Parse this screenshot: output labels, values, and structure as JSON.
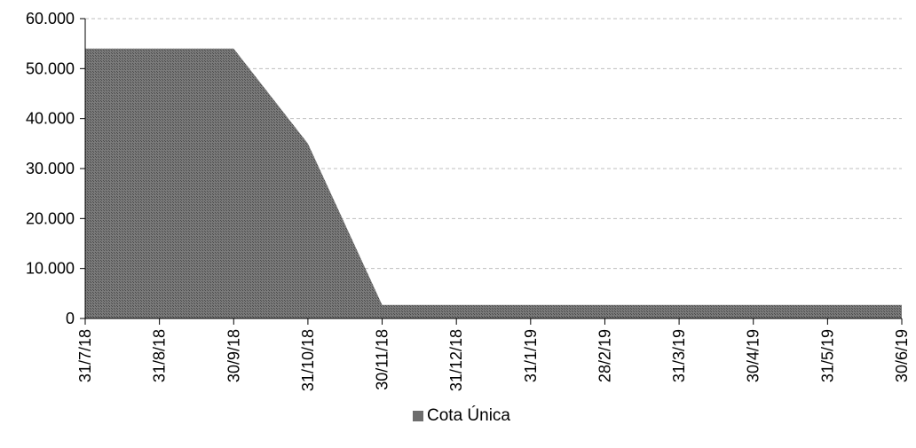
{
  "chart_data": {
    "type": "area",
    "title": "",
    "xlabel": "",
    "ylabel": "",
    "ylim": [
      0,
      60000
    ],
    "y_ticks": [
      "0",
      "10.000",
      "20.000",
      "30.000",
      "40.000",
      "50.000",
      "60.000"
    ],
    "y_tick_values": [
      0,
      10000,
      20000,
      30000,
      40000,
      50000,
      60000
    ],
    "x": [
      "31/7/18",
      "31/8/18",
      "30/9/18",
      "31/10/18",
      "30/11/18",
      "31/12/18",
      "31/1/19",
      "28/2/19",
      "31/3/19",
      "30/4/19",
      "31/5/19",
      "30/6/19"
    ],
    "series": [
      {
        "name": "Cota Única",
        "values": [
          54000,
          54000,
          54000,
          35000,
          2700,
          2700,
          2700,
          2700,
          2700,
          2700,
          2700,
          2700
        ]
      }
    ],
    "grid": true,
    "legend_position": "bottom",
    "colors": {
      "fill": "#6d6d6d",
      "grid": "#bfbfbf",
      "axis": "#000000"
    }
  }
}
